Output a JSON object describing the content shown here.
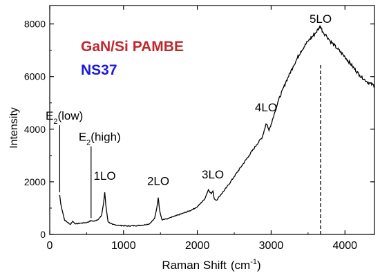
{
  "chart_data": {
    "type": "line",
    "xlabel": "Raman Shift",
    "xunit": "(cm",
    "xunit_sup": "-1",
    "xunit_close": ")",
    "ylabel": "Intensity",
    "xlim": [
      0,
      4400
    ],
    "ylim": [
      0,
      8700
    ],
    "xticks": [
      0,
      1000,
      2000,
      3000,
      4000
    ],
    "yticks": [
      0,
      2000,
      4000,
      6000,
      8000
    ],
    "grid": false,
    "title_line1": "GaN/Si PAMBE",
    "title_line2": "NS37",
    "colors": {
      "title_line1": "#c0282e",
      "title_line2": "#1a1ad6",
      "line": "#000000"
    },
    "series": [
      {
        "x": [
          135,
          150,
          200,
          280,
          310,
          350,
          420,
          500,
          560,
          600,
          660,
          700,
          730,
          745,
          760,
          790,
          850,
          950,
          1050,
          1150,
          1250,
          1350,
          1420,
          1450,
          1470,
          1490,
          1520,
          1600,
          1700,
          1800,
          1900,
          2000,
          2100,
          2150,
          2190,
          2210,
          2230,
          2260,
          2300,
          2400,
          2500,
          2600,
          2700,
          2800,
          2880,
          2930,
          2950,
          2970,
          3000,
          3050,
          3100,
          3200,
          3300,
          3400,
          3500,
          3600,
          3650,
          3670,
          3700,
          3750,
          3800,
          3900,
          4000,
          4100,
          4200,
          4300,
          4400
        ],
        "y": [
          1500,
          1150,
          550,
          380,
          500,
          400,
          430,
          450,
          520,
          500,
          580,
          700,
          1200,
          1600,
          1100,
          480,
          380,
          340,
          320,
          330,
          350,
          400,
          600,
          1000,
          1400,
          900,
          560,
          600,
          700,
          800,
          900,
          1050,
          1350,
          1700,
          1550,
          1650,
          1350,
          1300,
          1450,
          1800,
          2200,
          2600,
          3000,
          3400,
          3700,
          4200,
          4150,
          3950,
          4200,
          4650,
          5100,
          5800,
          6400,
          6950,
          7350,
          7650,
          7850,
          7900,
          7700,
          7550,
          7350,
          7050,
          6750,
          6400,
          6050,
          5800,
          5650
        ]
      }
    ],
    "annotations": [
      {
        "label": "E",
        "sub": "2",
        "suffix": "(low)",
        "x": 135,
        "y_top": 4150
      },
      {
        "label": "E",
        "sub": "2",
        "suffix": "(high)",
        "x": 560,
        "y_top": 3350
      },
      {
        "label": "1LO",
        "x": 745
      },
      {
        "label": "2LO",
        "x": 1470
      },
      {
        "label": "3LO",
        "x": 2210
      },
      {
        "label": "4LO",
        "x": 2930
      },
      {
        "label": "5LO",
        "x": 3670,
        "y_dash_top": 6450
      }
    ]
  }
}
